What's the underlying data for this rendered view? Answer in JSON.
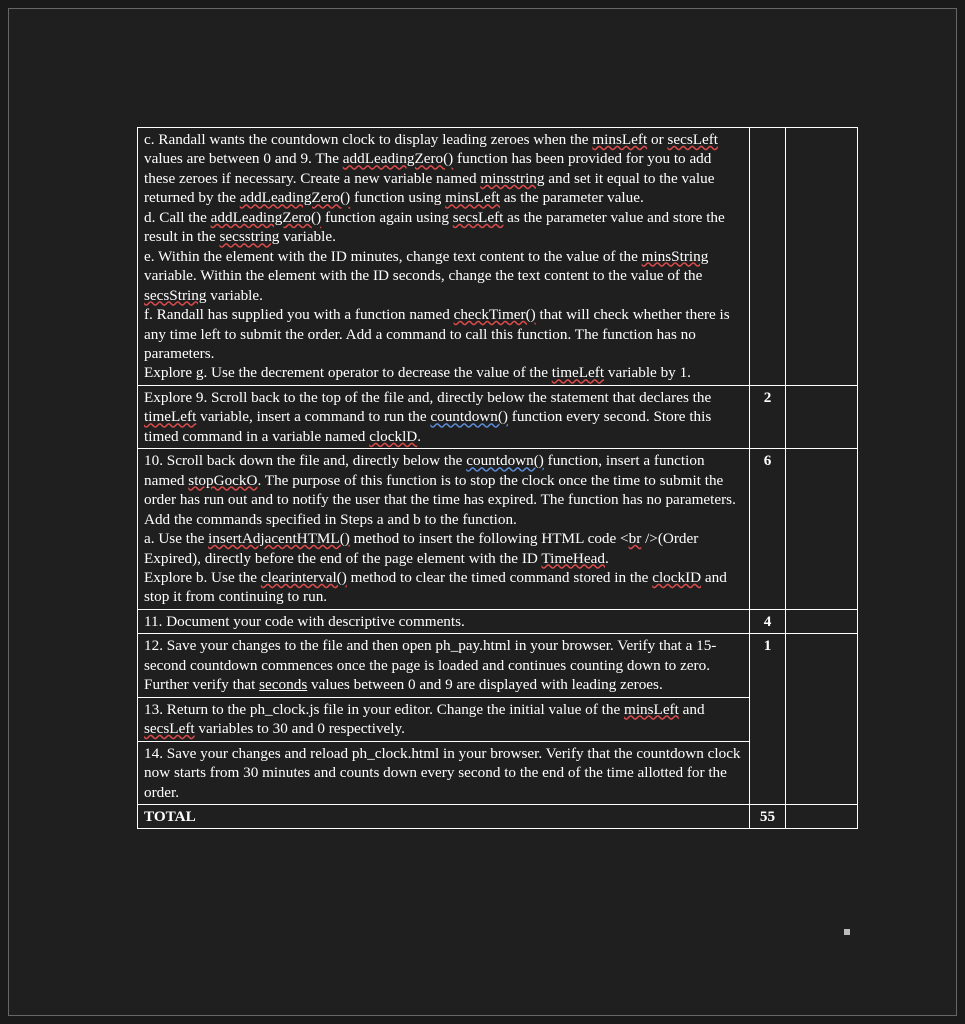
{
  "colors": {
    "page_bg": "#1a1a1a",
    "frame_bg": "#1f1f1f",
    "border": "#ffffff",
    "text": "#ffffff",
    "spell_red": "#d94b4b",
    "spell_blue": "#5b8bd6"
  },
  "rows": [
    {
      "points": "",
      "parts": [
        {
          "t": "c.  Randall wants the countdown clock to display leading zeroes when the "
        },
        {
          "t": "minsLeft",
          "cls": "u-red"
        },
        {
          "t": " or "
        },
        {
          "t": "secsLeft",
          "cls": "u-red"
        },
        {
          "t": " values are between 0 and 9. The "
        },
        {
          "t": "addLeadingZero()",
          "cls": "u-red"
        },
        {
          "t": " function has been provided for you to add these zeroes if necessary. Create a new variable named "
        },
        {
          "t": "minsstring",
          "cls": "u-red"
        },
        {
          "t": " and set it equal to the value returned by the "
        },
        {
          "t": "addLeadingZero()",
          "cls": "u-red"
        },
        {
          "t": " function using "
        },
        {
          "t": "minsLeft",
          "cls": "u-red"
        },
        {
          "t": " as the parameter value.\nd.  Call the "
        },
        {
          "t": "addLeadingZero()",
          "cls": "u-red"
        },
        {
          "t": " function again using "
        },
        {
          "t": "secsLeft",
          "cls": "u-red"
        },
        {
          "t": " as the parameter value and store the result in the "
        },
        {
          "t": "secsstring",
          "cls": "u-red"
        },
        {
          "t": " variable.\ne.  Within the element with the ID minutes, change text content to the value of the "
        },
        {
          "t": "minsString",
          "cls": "u-red"
        },
        {
          "t": " variable. Within the element with the ID seconds, change the text content to the value of the "
        },
        {
          "t": "secsString",
          "cls": "u-red"
        },
        {
          "t": " variable.\nf.  Randall has supplied you with a function named "
        },
        {
          "t": "checkTimer()",
          "cls": "u-red"
        },
        {
          "t": " that will check whether there is any time left to submit the order. Add a command to call this function. The function has no parameters.\nExplore g. Use the decrement operator to decrease the value of the "
        },
        {
          "t": "timeLeft",
          "cls": "u-red"
        },
        {
          "t": " variable by 1."
        }
      ]
    },
    {
      "points": "2",
      "parts": [
        {
          "t": "Explore 9. Scroll back to the top of the file and, directly below the statement that declares the "
        },
        {
          "t": "timeLeft",
          "cls": "u-red"
        },
        {
          "t": " variable, insert a command to run the "
        },
        {
          "t": "countdown()",
          "cls": "u-blue"
        },
        {
          "t": " function every second. Store this timed command in a variable named "
        },
        {
          "t": "clocklD",
          "cls": "u-red"
        },
        {
          "t": "."
        }
      ]
    },
    {
      "points": "6",
      "parts": [
        {
          "t": "10. Scroll back down the file and, directly below the "
        },
        {
          "t": "countdown()",
          "cls": "u-blue"
        },
        {
          "t": " function, insert a function named "
        },
        {
          "t": "stopGockO",
          "cls": "u-red"
        },
        {
          "t": ". The purpose of this function is to stop the clock once the time to submit the order has run out and to notify the user that the time has expired. The function has no parameters. Add the commands specified in Steps a and b to the function.\na. Use the "
        },
        {
          "t": "insertAdjacentHTML()",
          "cls": "u-red"
        },
        {
          "t": " method to insert the following HTML code <"
        },
        {
          "t": "br",
          "cls": "u-red"
        },
        {
          "t": " />(Order Expired), directly before the end of the page element with the ID "
        },
        {
          "t": "TimeHead",
          "cls": "u-red"
        },
        {
          "t": ".\n  Explore b. Use the "
        },
        {
          "t": "clearinterval()",
          "cls": "u-red"
        },
        {
          "t": " method to clear the timed command stored in the "
        },
        {
          "t": "clockID",
          "cls": "u-red"
        },
        {
          "t": " and stop it from continuing to run."
        }
      ]
    },
    {
      "points": "4",
      "parts": [
        {
          "t": "11.  Document your code with descriptive comments."
        }
      ]
    },
    {
      "points": "1",
      "parts": [
        {
          "t": "12.  Save your changes to the file and then open ph_pay.html in your browser. Verify that a 15-second countdown commences once the page is loaded and continues counting down to zero. Further verify that "
        },
        {
          "t": "seconds",
          "cls": "u-plain"
        },
        {
          "t": " values between 0 and 9 are displayed with leading zeroes."
        }
      ],
      "merge_below": 2
    },
    {
      "points": null,
      "parts": [
        {
          "t": "13.  Return to the ph_clock.js file in your editor. Change the initial value of the "
        },
        {
          "t": "minsLeft",
          "cls": "u-red"
        },
        {
          "t": " and "
        },
        {
          "t": "secsLeft",
          "cls": "u-red"
        },
        {
          "t": " variables to 30 and 0 respectively."
        }
      ]
    },
    {
      "points": null,
      "parts": [
        {
          "t": "14.  Save your changes and reload ph_clock.html in your browser. Verify that the countdown clock now starts from 30 minutes and counts down every second to the end of the time allotted for the order."
        }
      ]
    },
    {
      "points": "55",
      "parts": [
        {
          "t": "TOTAL",
          "cls": "total"
        }
      ]
    }
  ]
}
